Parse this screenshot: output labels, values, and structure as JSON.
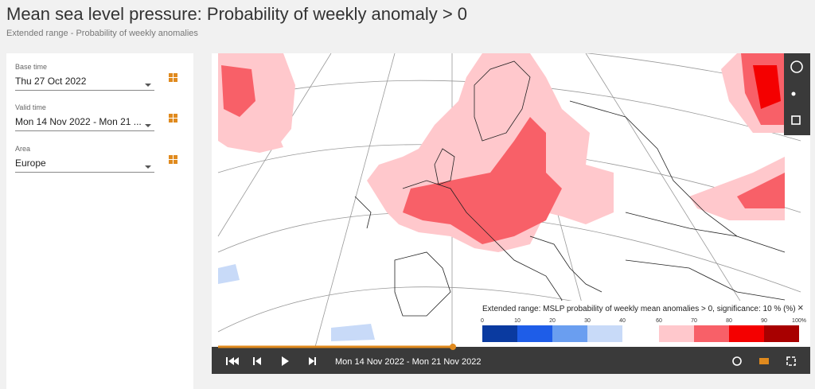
{
  "header": {
    "title": "Mean sea level pressure: Probability of weekly anomaly > 0",
    "subtitle": "Extended range - Probability of weekly anomalies"
  },
  "controls": [
    {
      "label": "Base time",
      "value": "Thu 27 Oct 2022"
    },
    {
      "label": "Valid time",
      "value": "Mon 14 Nov 2022 - Mon 21 ..."
    },
    {
      "label": "Area",
      "value": "Europe"
    }
  ],
  "legend": {
    "title": "Extended range: MSLP probability of weekly mean anomalies > 0, significance: 10 % (%)",
    "low_labels": [
      "0",
      "10",
      "20",
      "30",
      "40"
    ],
    "high_labels": [
      "60",
      "70",
      "80",
      "90",
      "100%"
    ]
  },
  "player": {
    "date": "Mon 14 Nov 2022 - Mon 21 Nov 2022"
  }
}
